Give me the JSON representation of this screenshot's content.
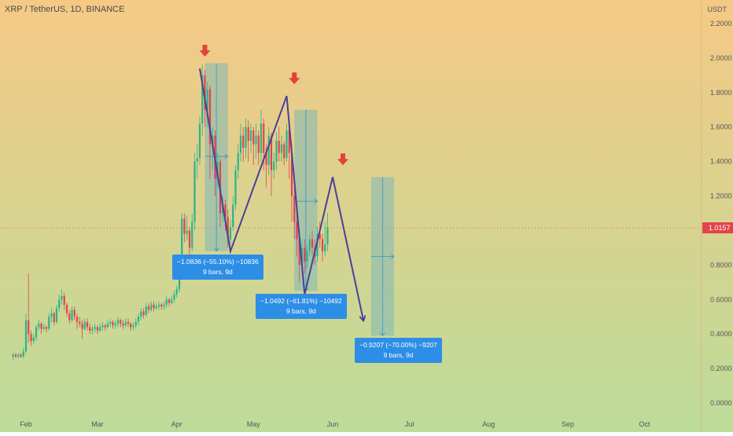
{
  "header": {
    "symbol": "XRP / TetherUS, 1D, BINANCE",
    "currency": "USDT"
  },
  "colors": {
    "bg_top": "#f5c985",
    "bg_bottom": "#bcdc9a",
    "up": "#2bb38a",
    "down": "#e2434b",
    "path": "#4a3f9a",
    "arrow_marker": "#e3413a",
    "box_fill": "#7fb8b6",
    "annotation": "#2d8ee6",
    "price_line": "#e2434b"
  },
  "chart_data": {
    "type": "candlestick",
    "ylim": [
      -0.05,
      2.3
    ],
    "y_ticks": [
      "2.2000",
      "2.0000",
      "1.8000",
      "1.6000",
      "1.4000",
      "1.2000",
      "1.0000",
      "0.8000",
      "0.6000",
      "0.4000",
      "0.2000",
      "0.0000"
    ],
    "y_tick_values": [
      2.2,
      2.0,
      1.8,
      1.6,
      1.4,
      1.2,
      1.0,
      0.8,
      0.6,
      0.4,
      0.2,
      0.0
    ],
    "x_ticks": [
      "Feb",
      "Mar",
      "Apr",
      "May",
      "Jun",
      "Jul",
      "Aug",
      "Sep",
      "Oct"
    ],
    "x_tick_days": [
      31,
      59,
      90,
      120,
      151,
      181,
      212,
      243,
      273
    ],
    "current_price": 1.0157,
    "current_price_label": "1.0157",
    "candles": [
      [
        26,
        0.27,
        0.28,
        0.25,
        0.29
      ],
      [
        27,
        0.28,
        0.27,
        0.26,
        0.29
      ],
      [
        28,
        0.27,
        0.28,
        0.26,
        0.29
      ],
      [
        29,
        0.28,
        0.27,
        0.26,
        0.29
      ],
      [
        30,
        0.27,
        0.3,
        0.26,
        0.32
      ],
      [
        31,
        0.3,
        0.48,
        0.29,
        0.52
      ],
      [
        32,
        0.48,
        0.4,
        0.35,
        0.75
      ],
      [
        33,
        0.4,
        0.36,
        0.33,
        0.42
      ],
      [
        34,
        0.36,
        0.38,
        0.34,
        0.4
      ],
      [
        35,
        0.38,
        0.44,
        0.36,
        0.45
      ],
      [
        36,
        0.44,
        0.46,
        0.42,
        0.48
      ],
      [
        37,
        0.46,
        0.43,
        0.4,
        0.47
      ],
      [
        38,
        0.43,
        0.44,
        0.42,
        0.46
      ],
      [
        39,
        0.44,
        0.43,
        0.41,
        0.45
      ],
      [
        40,
        0.43,
        0.5,
        0.42,
        0.52
      ],
      [
        41,
        0.5,
        0.52,
        0.47,
        0.55
      ],
      [
        42,
        0.52,
        0.47,
        0.45,
        0.53
      ],
      [
        43,
        0.47,
        0.55,
        0.46,
        0.57
      ],
      [
        44,
        0.55,
        0.6,
        0.53,
        0.63
      ],
      [
        45,
        0.6,
        0.62,
        0.57,
        0.66
      ],
      [
        46,
        0.62,
        0.57,
        0.54,
        0.64
      ],
      [
        47,
        0.57,
        0.52,
        0.5,
        0.58
      ],
      [
        48,
        0.52,
        0.48,
        0.46,
        0.54
      ],
      [
        49,
        0.48,
        0.54,
        0.47,
        0.56
      ],
      [
        50,
        0.54,
        0.5,
        0.48,
        0.56
      ],
      [
        51,
        0.5,
        0.47,
        0.43,
        0.52
      ],
      [
        52,
        0.47,
        0.46,
        0.44,
        0.5
      ],
      [
        53,
        0.46,
        0.43,
        0.37,
        0.48
      ],
      [
        54,
        0.43,
        0.47,
        0.42,
        0.49
      ],
      [
        55,
        0.47,
        0.44,
        0.42,
        0.49
      ],
      [
        56,
        0.44,
        0.42,
        0.4,
        0.46
      ],
      [
        57,
        0.42,
        0.43,
        0.4,
        0.45
      ],
      [
        58,
        0.43,
        0.44,
        0.41,
        0.46
      ],
      [
        59,
        0.44,
        0.42,
        0.4,
        0.45
      ],
      [
        60,
        0.42,
        0.44,
        0.41,
        0.46
      ],
      [
        61,
        0.44,
        0.45,
        0.42,
        0.47
      ],
      [
        62,
        0.45,
        0.44,
        0.42,
        0.46
      ],
      [
        63,
        0.44,
        0.46,
        0.43,
        0.48
      ],
      [
        64,
        0.46,
        0.47,
        0.44,
        0.49
      ],
      [
        65,
        0.47,
        0.45,
        0.43,
        0.48
      ],
      [
        66,
        0.45,
        0.46,
        0.43,
        0.48
      ],
      [
        67,
        0.46,
        0.48,
        0.44,
        0.5
      ],
      [
        68,
        0.48,
        0.46,
        0.44,
        0.49
      ],
      [
        69,
        0.46,
        0.45,
        0.43,
        0.48
      ],
      [
        70,
        0.45,
        0.47,
        0.44,
        0.49
      ],
      [
        71,
        0.47,
        0.46,
        0.44,
        0.49
      ],
      [
        72,
        0.46,
        0.44,
        0.42,
        0.47
      ],
      [
        73,
        0.44,
        0.45,
        0.42,
        0.47
      ],
      [
        74,
        0.45,
        0.47,
        0.43,
        0.49
      ],
      [
        75,
        0.47,
        0.5,
        0.45,
        0.52
      ],
      [
        76,
        0.5,
        0.53,
        0.48,
        0.55
      ],
      [
        77,
        0.53,
        0.51,
        0.49,
        0.55
      ],
      [
        78,
        0.51,
        0.56,
        0.5,
        0.58
      ],
      [
        79,
        0.56,
        0.54,
        0.52,
        0.58
      ],
      [
        80,
        0.54,
        0.57,
        0.53,
        0.59
      ],
      [
        81,
        0.57,
        0.55,
        0.53,
        0.59
      ],
      [
        82,
        0.55,
        0.56,
        0.54,
        0.58
      ],
      [
        83,
        0.56,
        0.57,
        0.54,
        0.59
      ],
      [
        84,
        0.57,
        0.56,
        0.54,
        0.58
      ],
      [
        85,
        0.56,
        0.57,
        0.54,
        0.59
      ],
      [
        86,
        0.57,
        0.6,
        0.55,
        0.62
      ],
      [
        87,
        0.6,
        0.58,
        0.56,
        0.61
      ],
      [
        88,
        0.58,
        0.6,
        0.57,
        0.62
      ],
      [
        89,
        0.6,
        0.63,
        0.58,
        0.65
      ],
      [
        90,
        0.63,
        0.66,
        0.61,
        0.68
      ],
      [
        91,
        0.66,
        0.75,
        0.64,
        0.78
      ],
      [
        92,
        0.75,
        1.07,
        0.73,
        1.1
      ],
      [
        93,
        1.07,
        0.98,
        0.93,
        1.1
      ],
      [
        94,
        0.98,
        1.0,
        0.94,
        1.09
      ],
      [
        95,
        1.0,
        0.9,
        0.86,
        1.02
      ],
      [
        96,
        0.9,
        1.05,
        0.88,
        1.1
      ],
      [
        97,
        1.05,
        1.4,
        1.0,
        1.45
      ],
      [
        98,
        1.4,
        1.42,
        1.3,
        1.5
      ],
      [
        99,
        1.42,
        1.62,
        1.38,
        1.66
      ],
      [
        100,
        1.62,
        1.9,
        1.55,
        1.96
      ],
      [
        101,
        1.9,
        1.7,
        1.6,
        1.93
      ],
      [
        102,
        1.7,
        1.82,
        1.6,
        1.86
      ],
      [
        103,
        1.82,
        1.5,
        1.3,
        1.84
      ],
      [
        104,
        1.5,
        1.55,
        1.35,
        1.6
      ],
      [
        105,
        1.55,
        1.3,
        1.2,
        1.58
      ],
      [
        106,
        1.3,
        1.4,
        1.25,
        1.45
      ],
      [
        107,
        1.4,
        1.1,
        1.02,
        1.42
      ],
      [
        108,
        1.1,
        1.15,
        1.05,
        1.2
      ],
      [
        109,
        1.15,
        1.08,
        1.0,
        1.18
      ],
      [
        110,
        1.08,
        0.95,
        0.9,
        1.12
      ],
      [
        111,
        0.95,
        1.02,
        0.92,
        1.06
      ],
      [
        112,
        1.02,
        1.15,
        1.0,
        1.2
      ],
      [
        113,
        1.15,
        1.35,
        1.12,
        1.38
      ],
      [
        114,
        1.35,
        1.45,
        1.3,
        1.5
      ],
      [
        115,
        1.45,
        1.55,
        1.4,
        1.62
      ],
      [
        116,
        1.55,
        1.48,
        1.4,
        1.6
      ],
      [
        117,
        1.48,
        1.6,
        1.42,
        1.65
      ],
      [
        118,
        1.6,
        1.52,
        1.4,
        1.64
      ],
      [
        119,
        1.52,
        1.58,
        1.45,
        1.62
      ],
      [
        120,
        1.58,
        1.5,
        1.38,
        1.6
      ],
      [
        121,
        1.5,
        1.55,
        1.42,
        1.62
      ],
      [
        122,
        1.55,
        1.45,
        1.38,
        1.58
      ],
      [
        123,
        1.45,
        1.62,
        1.4,
        1.7
      ],
      [
        124,
        1.62,
        1.45,
        1.35,
        1.65
      ],
      [
        125,
        1.45,
        1.38,
        1.25,
        1.5
      ],
      [
        126,
        1.38,
        1.55,
        1.32,
        1.6
      ],
      [
        127,
        1.55,
        1.35,
        1.2,
        1.57
      ],
      [
        128,
        1.35,
        1.4,
        1.3,
        1.45
      ],
      [
        129,
        1.4,
        1.52,
        1.35,
        1.57
      ],
      [
        130,
        1.52,
        1.45,
        1.4,
        1.6
      ],
      [
        131,
        1.45,
        1.5,
        1.4,
        1.55
      ],
      [
        132,
        1.5,
        1.42,
        1.38,
        1.52
      ],
      [
        133,
        1.42,
        1.58,
        1.4,
        1.62
      ],
      [
        134,
        1.58,
        1.45,
        1.3,
        1.6
      ],
      [
        135,
        1.45,
        1.2,
        1.05,
        1.5
      ],
      [
        136,
        1.2,
        1.05,
        0.95,
        1.25
      ],
      [
        137,
        1.05,
        0.95,
        0.85,
        1.1
      ],
      [
        138,
        0.95,
        0.8,
        0.7,
        1.0
      ],
      [
        139,
        0.8,
        0.9,
        0.78,
        0.95
      ],
      [
        140,
        0.9,
        0.82,
        0.75,
        0.95
      ],
      [
        141,
        0.82,
        0.88,
        0.78,
        0.92
      ],
      [
        142,
        0.88,
        0.95,
        0.85,
        0.98
      ],
      [
        143,
        0.95,
        0.9,
        0.86,
        1.0
      ],
      [
        144,
        0.9,
        0.85,
        0.8,
        0.95
      ],
      [
        145,
        0.85,
        0.98,
        0.82,
        1.02
      ],
      [
        146,
        0.98,
        0.95,
        0.9,
        1.05
      ],
      [
        147,
        0.95,
        0.88,
        0.82,
        0.98
      ],
      [
        148,
        0.88,
        0.92,
        0.85,
        1.05
      ],
      [
        149,
        0.92,
        1.02,
        0.88,
        1.1
      ]
    ],
    "pattern_path": [
      [
        99,
        1.94
      ],
      [
        111,
        0.88
      ],
      [
        133,
        1.78
      ],
      [
        140,
        0.63
      ],
      [
        151,
        1.31
      ],
      [
        163,
        0.48
      ]
    ],
    "pattern_arrow_at": [
      163,
      0.48
    ],
    "peak_markers": [
      [
        101,
        1.94
      ],
      [
        136,
        1.78
      ],
      [
        155,
        1.31
      ]
    ],
    "range_boxes": [
      {
        "x0": 101,
        "x1": 110,
        "y0": 0.88,
        "y1": 1.97,
        "arrow_y": 1.43
      },
      {
        "x0": 136,
        "x1": 145,
        "y0": 0.65,
        "y1": 1.7,
        "arrow_y": 1.17
      },
      {
        "x0": 166,
        "x1": 175,
        "y0": 0.39,
        "y1": 1.31,
        "arrow_y": 0.85
      }
    ],
    "annotations": [
      {
        "line1": "−1.0836 (−55.10%) −10836",
        "line2": "9 bars, 9d"
      },
      {
        "line1": "−1.0492 (−61.81%) −10492",
        "line2": "9 bars, 9d"
      },
      {
        "line1": "−0.9207 (−70.00%) −9207",
        "line2": "9 bars, 9d"
      }
    ]
  }
}
